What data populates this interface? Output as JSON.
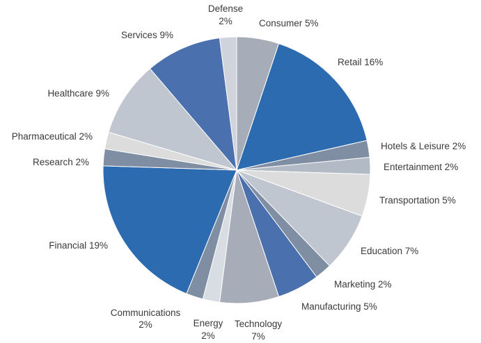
{
  "chart_data": {
    "type": "pie",
    "title": "",
    "slices": [
      {
        "label": "Consumer",
        "value": 5,
        "display": "Consumer 5%",
        "color": "#a7adb8"
      },
      {
        "label": "Retail",
        "value": 16,
        "display": "Retail 16%",
        "color": "#2c6bb0"
      },
      {
        "label": "Hotels & Leisure",
        "value": 2,
        "display": "Hotels & Leisure 2%",
        "color": "#7f8ea3"
      },
      {
        "label": "Entertainment",
        "value": 2,
        "display": "Entertainment 2%",
        "color": "#b2bac6"
      },
      {
        "label": "Transportation",
        "value": 5,
        "display": "Transportation 5%",
        "color": "#dcdcdc"
      },
      {
        "label": "Education",
        "value": 7,
        "display": "Education 7%",
        "color": "#bfc6d0"
      },
      {
        "label": "Marketing",
        "value": 2,
        "display": "Marketing 2%",
        "color": "#7f8ea3"
      },
      {
        "label": "Manufacturing",
        "value": 5,
        "display": "Manufacturing 5%",
        "color": "#4a70ae"
      },
      {
        "label": "Technology",
        "value": 7,
        "display": [
          "Technology",
          "7%"
        ],
        "color": "#a7adb8"
      },
      {
        "label": "Energy",
        "value": 2,
        "display": [
          "Energy",
          "2%"
        ],
        "color": "#d8dce3"
      },
      {
        "label": "Communications",
        "value": 2,
        "display": [
          "Communications",
          "2%"
        ],
        "color": "#7f8ea3"
      },
      {
        "label": "Financial",
        "value": 19,
        "display": "Financial 19%",
        "color": "#2c6bb0"
      },
      {
        "label": "Research",
        "value": 2,
        "display": "Research 2%",
        "color": "#7f8ea3"
      },
      {
        "label": "Pharmaceutical",
        "value": 2,
        "display": "Pharmaceutical 2%",
        "color": "#dcdcdc"
      },
      {
        "label": "Healthcare",
        "value": 9,
        "display": "Healthcare 9%",
        "color": "#bfc6d0"
      },
      {
        "label": "Services",
        "value": 9,
        "display": "Services 9%",
        "color": "#4a70ae"
      },
      {
        "label": "Defense",
        "value": 2,
        "display": [
          "Defense",
          "2%"
        ],
        "color": "#d0d3dc"
      }
    ]
  }
}
